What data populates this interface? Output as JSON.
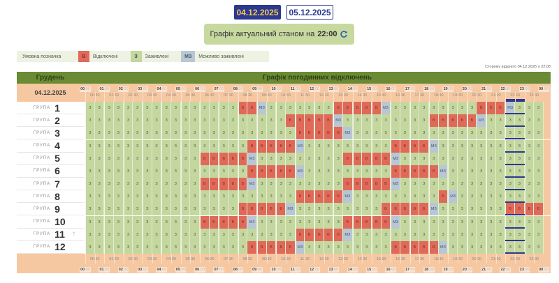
{
  "date_tabs": [
    {
      "label": "04.12.2025",
      "active": true
    },
    {
      "label": "05.12.2025",
      "active": false
    }
  ],
  "status": {
    "prefix": "Графік актуальний станом на",
    "time": "22:00",
    "icon": "refresh-icon"
  },
  "legend": {
    "title": "Умовна позначка",
    "items": [
      {
        "code": "В",
        "label": "Відключені",
        "color": "#e06a59"
      },
      {
        "code": "З",
        "label": "Заживлені",
        "color": "#c4d79e"
      },
      {
        "code": "МЗ",
        "label": "Можливо заживлені",
        "color": "#b8c7d3"
      }
    ]
  },
  "page_opened": "Сторінку відкрито 04.12.2025 о 22:08",
  "table": {
    "month": "Грудень",
    "title": "Графік погодинних відключень",
    "date": "04.12.2025",
    "hours": [
      "00",
      "01",
      "02",
      "03",
      "04",
      "05",
      "06",
      "07",
      "08",
      "09",
      "10",
      "11",
      "12",
      "13",
      "14",
      "15",
      "16",
      "17",
      "18",
      "19",
      "20",
      "21",
      "22",
      "23",
      "00"
    ],
    "half_hours": [
      "00:30",
      "01:30",
      "02:30",
      "03:30",
      "04:30",
      "05:30",
      "06:30",
      "07:30",
      "08:30",
      "09:30",
      "10:30",
      "11:30",
      "12:30",
      "13:30",
      "14:30",
      "15:30",
      "16:30",
      "17:30",
      "18:30",
      "19:30",
      "20:30",
      "21:30",
      "22:30",
      "23:30"
    ],
    "group_label": "ГРУПА",
    "default_status": "З",
    "current_time": "22:00",
    "groups": [
      {
        "number": "1",
        "periods": [
          {
            "status": "В",
            "from": "08:00",
            "to": "09:00"
          },
          {
            "status": "МЗ",
            "from": "09:00",
            "to": "09:30"
          },
          {
            "status": "В",
            "from": "13:00",
            "to": "15:30"
          },
          {
            "status": "МЗ",
            "from": "15:30",
            "to": "16:00"
          },
          {
            "status": "В",
            "from": "20:30",
            "to": "22:00"
          },
          {
            "status": "МЗ",
            "from": "22:00",
            "to": "22:30"
          }
        ]
      },
      {
        "number": "2",
        "periods": [
          {
            "status": "В",
            "from": "10:30",
            "to": "13:00"
          },
          {
            "status": "МЗ",
            "from": "13:00",
            "to": "13:30"
          },
          {
            "status": "В",
            "from": "18:00",
            "to": "20:30"
          },
          {
            "status": "МЗ",
            "from": "20:30",
            "to": "21:00"
          }
        ]
      },
      {
        "number": "3",
        "periods": [
          {
            "status": "В",
            "from": "11:00",
            "to": "13:30"
          },
          {
            "status": "МЗ",
            "from": "13:30",
            "to": "14:00"
          }
        ]
      },
      {
        "number": "4",
        "periods": [
          {
            "status": "В",
            "from": "08:30",
            "to": "11:00"
          },
          {
            "status": "МЗ",
            "from": "11:00",
            "to": "11:30"
          },
          {
            "status": "В",
            "from": "16:00",
            "to": "18:00"
          },
          {
            "status": "МЗ",
            "from": "18:00",
            "to": "18:30"
          }
        ]
      },
      {
        "number": "5",
        "periods": [
          {
            "status": "В",
            "from": "06:00",
            "to": "08:30"
          },
          {
            "status": "МЗ",
            "from": "08:30",
            "to": "09:00"
          },
          {
            "status": "В",
            "from": "13:30",
            "to": "16:00"
          },
          {
            "status": "МЗ",
            "from": "16:00",
            "to": "16:30"
          }
        ]
      },
      {
        "number": "6",
        "periods": [
          {
            "status": "В",
            "from": "08:30",
            "to": "11:00"
          },
          {
            "status": "МЗ",
            "from": "11:00",
            "to": "11:30"
          },
          {
            "status": "В",
            "from": "16:00",
            "to": "18:30"
          },
          {
            "status": "МЗ",
            "from": "18:30",
            "to": "19:00"
          }
        ]
      },
      {
        "number": "7",
        "periods": [
          {
            "status": "В",
            "from": "06:00",
            "to": "08:30"
          },
          {
            "status": "МЗ",
            "from": "08:30",
            "to": "09:00"
          },
          {
            "status": "В",
            "from": "13:30",
            "to": "16:00"
          },
          {
            "status": "МЗ",
            "from": "16:00",
            "to": "16:30"
          }
        ]
      },
      {
        "number": "8",
        "periods": [
          {
            "status": "В",
            "from": "11:00",
            "to": "13:30"
          },
          {
            "status": "МЗ",
            "from": "13:30",
            "to": "14:00"
          },
          {
            "status": "В",
            "from": "18:30",
            "to": "19:00"
          },
          {
            "status": "МЗ",
            "from": "19:00",
            "to": "19:30"
          }
        ]
      },
      {
        "number": "9",
        "periods": [
          {
            "status": "В",
            "from": "08:00",
            "to": "10:30"
          },
          {
            "status": "МЗ",
            "from": "10:30",
            "to": "11:00"
          },
          {
            "status": "В",
            "from": "15:30",
            "to": "18:00"
          },
          {
            "status": "МЗ",
            "from": "18:00",
            "to": "18:30"
          },
          {
            "status": "В",
            "from": "22:00",
            "to": "24:00"
          }
        ]
      },
      {
        "number": "10",
        "periods": [
          {
            "status": "В",
            "from": "06:00",
            "to": "08:30"
          },
          {
            "status": "МЗ",
            "from": "08:30",
            "to": "09:00"
          },
          {
            "status": "В",
            "from": "13:30",
            "to": "16:00"
          },
          {
            "status": "МЗ",
            "from": "16:00",
            "to": "16:30"
          }
        ]
      },
      {
        "number": "11",
        "periods": [
          {
            "status": "В",
            "from": "11:00",
            "to": "13:30"
          },
          {
            "status": "МЗ",
            "from": "13:30",
            "to": "14:00"
          }
        ],
        "scroll_top_icon": "arrow-up-icon"
      },
      {
        "number": "12",
        "periods": [
          {
            "status": "В",
            "from": "08:30",
            "to": "11:00"
          },
          {
            "status": "МЗ",
            "from": "11:00",
            "to": "11:30"
          },
          {
            "status": "В",
            "from": "16:00",
            "to": "18:30"
          },
          {
            "status": "МЗ",
            "from": "18:30",
            "to": "19:00"
          }
        ]
      }
    ]
  }
}
